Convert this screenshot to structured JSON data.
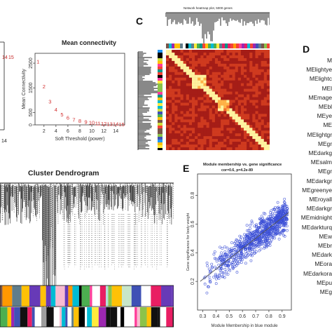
{
  "panels": {
    "c_label": "C",
    "d_label": "D",
    "e_label": "E"
  },
  "chart_data": [
    {
      "id": "scale-free-fit",
      "type": "scatter",
      "title": "",
      "partial_tick_label": "14",
      "point_labels": [
        "14",
        "15"
      ]
    },
    {
      "id": "mean-connectivity",
      "type": "scatter",
      "title": "Mean connectivity",
      "xlabel": "Soft Threshold (power)",
      "ylabel": "Mean Connectivity",
      "xlim": [
        0.5,
        15.5
      ],
      "ylim": [
        0,
        2900
      ],
      "xticks": [
        2,
        4,
        6,
        8,
        10,
        12,
        14
      ],
      "yticks": [
        0,
        500,
        1500,
        2500
      ],
      "x": [
        1,
        2,
        3,
        4,
        5,
        6,
        7,
        8,
        9,
        10,
        11,
        12,
        13,
        14,
        15
      ],
      "y": [
        2580,
        1560,
        950,
        620,
        420,
        300,
        220,
        165,
        125,
        95,
        75,
        60,
        48,
        38,
        30
      ],
      "labels": [
        "1",
        "2",
        "3",
        "4",
        "5",
        "6",
        "7",
        "8",
        "9",
        "10",
        "11",
        "12",
        "13",
        "14",
        "15"
      ]
    },
    {
      "id": "network-heatmap",
      "type": "heatmap",
      "title": "Network heatmap plot, 5000 genes"
    },
    {
      "id": "cluster-dendrogram",
      "type": "other",
      "title": "Cluster Dendrogram"
    },
    {
      "id": "module-membership",
      "type": "scatter",
      "title": "Module membership vs. gene significance",
      "subtitle": "cor=0.6, p=4.2e-89",
      "xlabel": "Module Membership in blue module",
      "ylabel": "Gene significance for body weight",
      "xlim": [
        0.26,
        0.97
      ],
      "ylim": [
        0.0,
        0.95
      ],
      "xticks": [
        0.3,
        0.4,
        0.5,
        0.6,
        0.7,
        0.8,
        0.9
      ],
      "yticks": [
        0.2,
        0.4,
        0.6,
        0.8
      ],
      "point_color": "#3b4fd6",
      "regression": {
        "x": [
          0.28,
          0.95
        ],
        "y": [
          0.2,
          0.68
        ]
      }
    },
    {
      "id": "module-eigengenes",
      "type": "other",
      "labels": [
        "M",
        "MElightye",
        "MElightc",
        "MEl",
        "MEmage",
        "MEbl",
        "MEye",
        "ME",
        "MElightgr",
        "MEgr",
        "MEdarkg",
        "MEsalm",
        "MEgr",
        "MEdarkgr",
        "MEgreenye",
        "MEroyall",
        "MEdarkgr",
        "MEmidnight",
        "MEdarkturq",
        "MEw",
        "MEbr",
        "MEdark",
        "MEora",
        "MEdarkora",
        "MEpu",
        "MEg"
      ]
    }
  ]
}
